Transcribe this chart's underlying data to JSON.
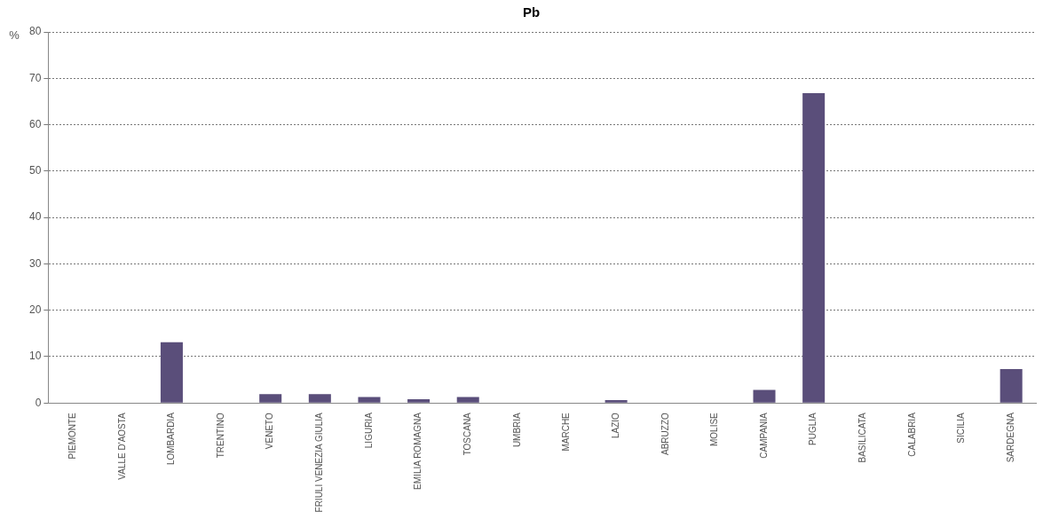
{
  "chart_data": {
    "type": "bar",
    "title": "Pb",
    "ylabel": "%",
    "categories": [
      "PIEMONTE",
      "VALLE D'AOSTA",
      "LOMBARDIA",
      "TRENTINO",
      "VENETO",
      "FRIULI VENEZIA GIULIA",
      "LIGURIA",
      "EMILIA ROMAGNA",
      "TOSCANA",
      "UMBRIA",
      "MARCHE",
      "LAZIO",
      "ABRUZZO",
      "MOLISE",
      "CAMPANIA",
      "PUGLIA",
      "BASILICATA",
      "CALABRIA",
      "SICILIA",
      "SARDEGNA"
    ],
    "values": [
      0,
      0,
      13.1,
      0,
      1.9,
      1.9,
      1.3,
      0.8,
      1.3,
      0,
      0,
      0.6,
      0,
      0,
      2.8,
      66.8,
      0,
      0,
      0,
      7.3
    ],
    "color": "#5a4e7a",
    "ylim": [
      0,
      80
    ],
    "yticks": [
      0,
      10,
      20,
      30,
      40,
      50,
      60,
      70,
      80
    ],
    "grid": "y",
    "legend": false
  }
}
